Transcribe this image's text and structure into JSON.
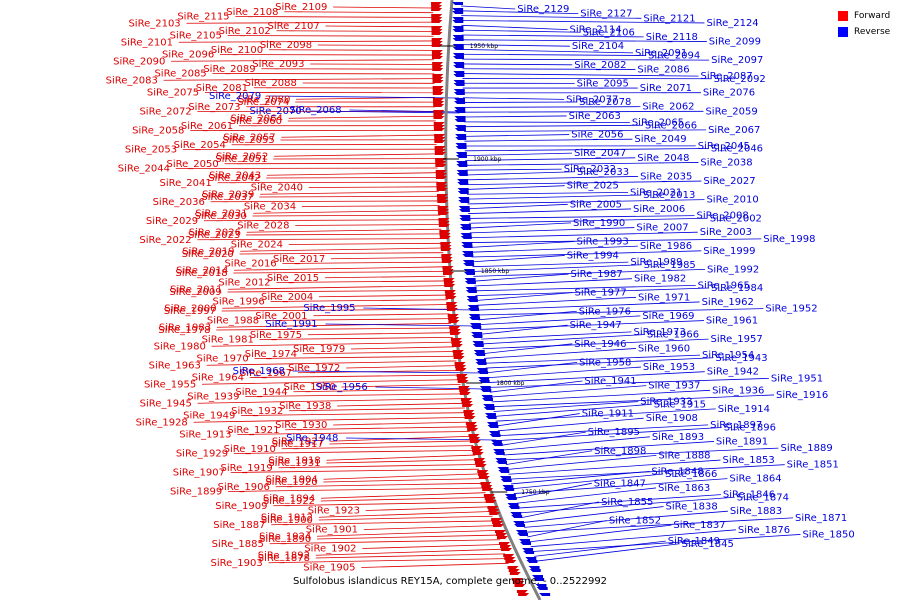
{
  "caption": "Sulfolobus islandicus REY15A, complete genome. - 0..2522992",
  "legend": [
    {
      "label": "Forward",
      "color": "#ff0000"
    },
    {
      "label": "Reverse",
      "color": "#0000ff"
    }
  ],
  "colors": {
    "forward": "#dd0000",
    "reverse": "#0000dd",
    "backbone": "#808080"
  },
  "ticks": [
    "1950 kbp",
    "1900 kbp",
    "1850 kbp",
    "1800 kbp",
    "1750 kbp"
  ],
  "forward_labels": [
    "SiRe_2109",
    "SiRe_2108",
    "SiRe_2115",
    "SiRe_2103",
    "SiRe_2107",
    "SiRe_2102",
    "SiRe_2105",
    "SiRe_2101",
    "SiRe_2098",
    "SiRe_2100",
    "SiRe_2096",
    "SiRe_2090",
    "SiRe_2093",
    "SiRe_2089",
    "SiRe_2085",
    "SiRe_2083",
    "SiRe_2088",
    "SiRe_2081",
    "SiRe_2075",
    "SiRe_2080",
    "SiRe_2074",
    "SiRe_2073",
    "SiRe_2072",
    "SiRe_2064",
    "SiRe_2060",
    "SiRe_2061",
    "SiRe_2058",
    "SiRe_2057",
    "SiRe_2055",
    "SiRe_2054",
    "SiRe_2053",
    "SiRe_2052",
    "SiRe_2051",
    "SiRe_2050",
    "SiRe_2044",
    "SiRe_2043",
    "SiRe_2042",
    "SiRe_2041",
    "SiRe_2040",
    "SiRe_2039",
    "SiRe_2037",
    "SiRe_2036",
    "SiRe_2034",
    "SiRe_2031",
    "SiRe_2030",
    "SiRe_2029",
    "SiRe_2028",
    "SiRe_2026",
    "SiRe_2023",
    "SiRe_2022",
    "SiRe_2024",
    "SiRe_2019",
    "SiRe_2020",
    "SiRe_2017",
    "SiRe_2016",
    "SiRe_2014",
    "SiRe_2018",
    "SiRe_2015",
    "SiRe_2012",
    "SiRe_2011",
    "SiRe_2009",
    "SiRe_2004",
    "SiRe_1996",
    "SiRe_2000",
    "SiRe_1997",
    "SiRe_2001",
    "SiRe_1988",
    "SiRe_1983",
    "SiRe_1978",
    "SiRe_1975",
    "SiRe_1981",
    "SiRe_1980",
    "SiRe_1979",
    "SiRe_1974",
    "SiRe_1970",
    "SiRe_1963",
    "SiRe_1972",
    "SiRe_1967",
    "SiRe_1964",
    "SiRe_1955",
    "SiRe_1950",
    "SiRe_1944",
    "SiRe_1939",
    "SiRe_1945",
    "SiRe_1938",
    "SiRe_1932",
    "SiRe_1949",
    "SiRe_1928",
    "SiRe_1930",
    "SiRe_1921",
    "SiRe_1913",
    "SiRe_1927",
    "SiRe_1917",
    "SiRe_1910",
    "SiRe_1929",
    "SiRe_1918",
    "SiRe_1931",
    "SiRe_1919",
    "SiRe_1907",
    "SiRe_1904",
    "SiRe_1920",
    "SiRe_1906",
    "SiRe_1899",
    "SiRe_1894",
    "SiRe_1922",
    "SiRe_1909",
    "SiRe_1923",
    "SiRe_1912",
    "SiRe_1900",
    "SiRe_1887",
    "SiRe_1901",
    "SiRe_1924",
    "SiRe_1890",
    "SiRe_1885",
    "SiRe_1902",
    "SiRe_1892",
    "SiRe_1878",
    "SiRe_1903",
    "SiRe_1905"
  ],
  "reverse_labels": [
    "SiRe_2129",
    "SiRe_2127",
    "SiRe_2121",
    "SiRe_2124",
    "SiRe_2114",
    "SiRe_2106",
    "SiRe_2118",
    "SiRe_2099",
    "SiRe_2104",
    "SiRe_2091",
    "SiRe_2094",
    "SiRe_2097",
    "SiRe_2082",
    "SiRe_2086",
    "SiRe_2087",
    "SiRe_2092",
    "SiRe_2095",
    "SiRe_2071",
    "SiRe_2076",
    "SiRe_2077",
    "SiRe_2078",
    "SiRe_2062",
    "SiRe_2059",
    "SiRe_2063",
    "SiRe_2065",
    "SiRe_2066",
    "SiRe_2067",
    "SiRe_2056",
    "SiRe_2049",
    "SiRe_2045",
    "SiRe_2046",
    "SiRe_2047",
    "SiRe_2048",
    "SiRe_2038",
    "SiRe_2032",
    "SiRe_2033",
    "SiRe_2035",
    "SiRe_2027",
    "SiRe_2025",
    "SiRe_2021",
    "SiRe_2013",
    "SiRe_2010",
    "SiRe_2005",
    "SiRe_2006",
    "SiRe_2008",
    "SiRe_2002",
    "SiRe_1990",
    "SiRe_2007",
    "SiRe_2003",
    "SiRe_1998",
    "SiRe_1993",
    "SiRe_1986",
    "SiRe_1999",
    "SiRe_1994",
    "SiRe_1989",
    "SiRe_1985",
    "SiRe_1992",
    "SiRe_1987",
    "SiRe_1982",
    "SiRe_1965",
    "SiRe_1984",
    "SiRe_1977",
    "SiRe_1971",
    "SiRe_1962",
    "SiRe_1952",
    "SiRe_1976",
    "SiRe_1969",
    "SiRe_1961",
    "SiRe_1947",
    "SiRe_1973",
    "SiRe_1966",
    "SiRe_1957",
    "SiRe_1946",
    "SiRe_1960",
    "SiRe_1954",
    "SiRe_1943",
    "SiRe_1958",
    "SiRe_1953",
    "SiRe_1942",
    "SiRe_1951",
    "SiRe_1941",
    "SiRe_1937",
    "SiRe_1936",
    "SiRe_1916",
    "SiRe_1933",
    "SiRe_1915",
    "SiRe_1914",
    "SiRe_1911",
    "SiRe_1908",
    "SiRe_1897",
    "SiRe_1896",
    "SiRe_1895",
    "SiRe_1893",
    "SiRe_1891",
    "SiRe_1889",
    "SiRe_1898",
    "SiRe_1888",
    "SiRe_1853",
    "SiRe_1851",
    "SiRe_1848",
    "SiRe_1866",
    "SiRe_1864",
    "SiRe_1847",
    "SiRe_1863",
    "SiRe_1846",
    "SiRe_1874",
    "SiRe_1855",
    "SiRe_1838",
    "SiRe_1883",
    "SiRe_1871",
    "SiRe_1852",
    "SiRe_1837",
    "SiRe_1876",
    "SiRe_1850",
    "SiRe_1849",
    "SiRe_1845"
  ],
  "mixed_side_labels": [
    "SiRe_2068",
    "SiRe_2070",
    "SiRe_2079",
    "SiRe_1995",
    "SiRe_1991",
    "SiRe_1968",
    "SiRe_1956",
    "SiRe_1948"
  ]
}
